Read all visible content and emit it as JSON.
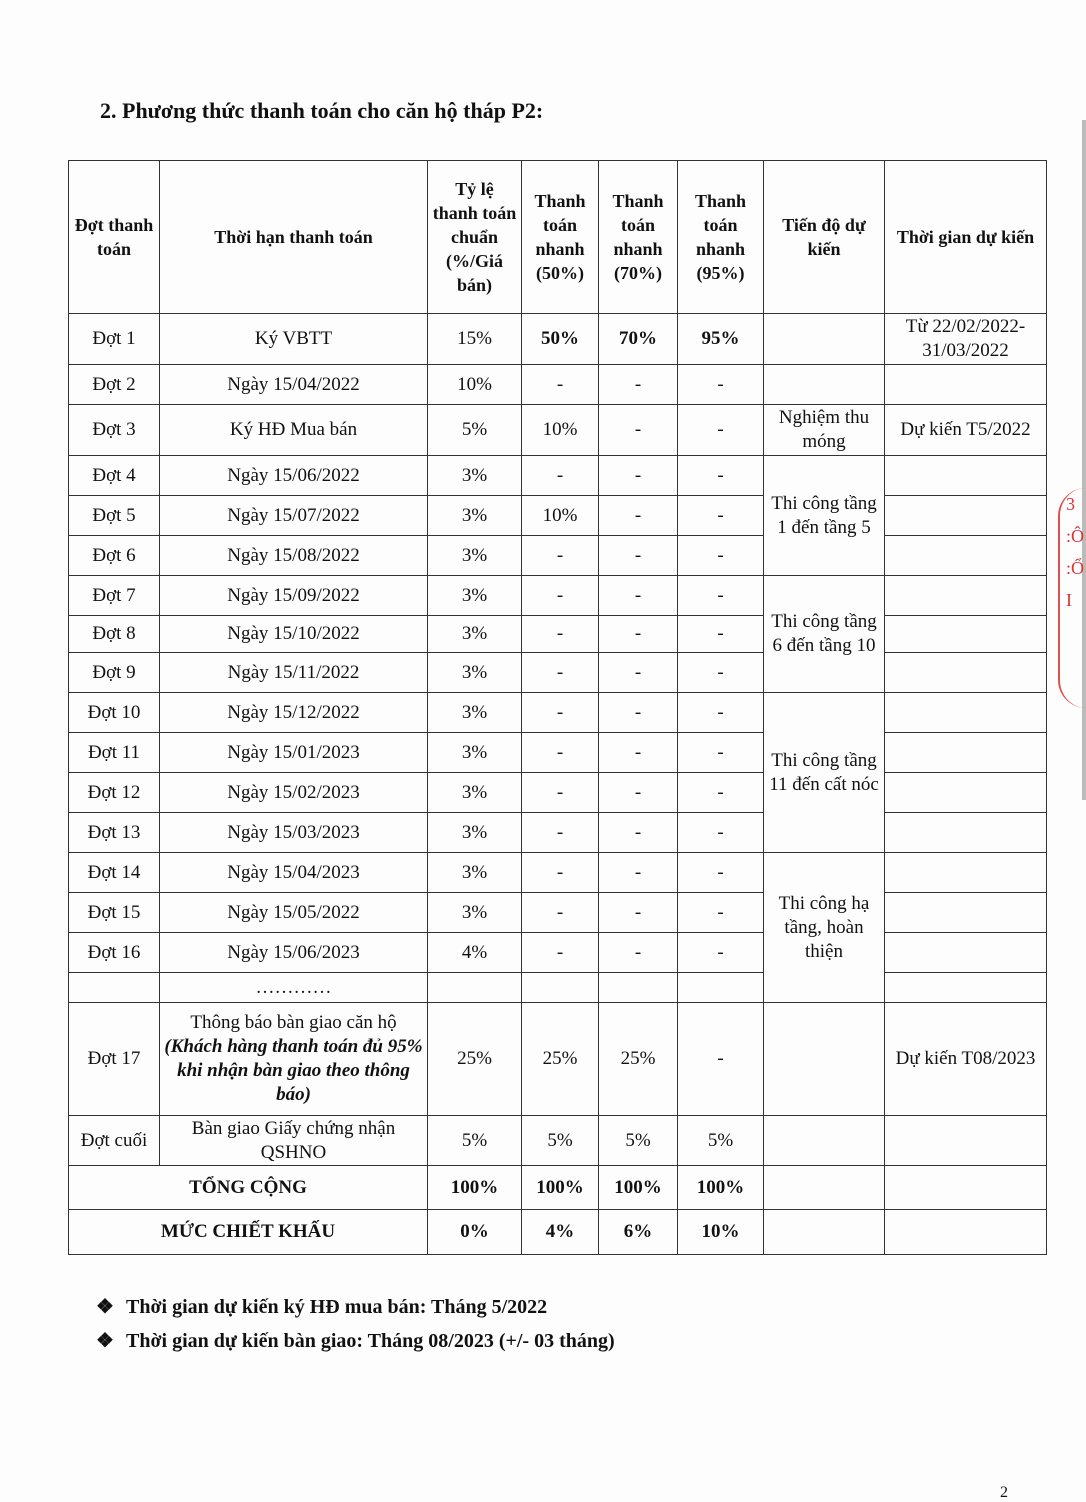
{
  "heading": "2. Phương thức thanh toán cho căn hộ tháp P2:",
  "table": {
    "headers": [
      "Đợt thanh toán",
      "Thời hạn thanh toán",
      "Tỷ lệ thanh toán chuẩn (%/Giá bán)",
      "Thanh toán nhanh (50%)",
      "Thanh toán nhanh (70%)",
      "Thanh toán nhanh (95%)",
      "Tiến độ dự kiến",
      "Thời gian dự kiến"
    ],
    "rows": [
      {
        "dot": "Đợt 1",
        "han": "Ký VBTT",
        "chuan": "15%",
        "n50": "50%",
        "n70": "70%",
        "n95": "95%",
        "tgian": "Từ 22/02/2022-31/03/2022"
      },
      {
        "dot": "Đợt 2",
        "han": "Ngày 15/04/2022",
        "chuan": "10%",
        "n50": "-",
        "n70": "-",
        "n95": "-"
      },
      {
        "dot": "Đợt 3",
        "han": "Ký HĐ Mua bán",
        "chuan": "5%",
        "n50": "10%",
        "n70": "-",
        "n95": "-",
        "tgian": "Dự kiến T5/2022"
      },
      {
        "dot": "Đợt 4",
        "han": "Ngày 15/06/2022",
        "chuan": "3%",
        "n50": "-",
        "n70": "-",
        "n95": "-"
      },
      {
        "dot": "Đợt 5",
        "han": "Ngày 15/07/2022",
        "chuan": "3%",
        "n50": "10%",
        "n70": "-",
        "n95": "-"
      },
      {
        "dot": "Đợt 6",
        "han": "Ngày 15/08/2022",
        "chuan": "3%",
        "n50": "-",
        "n70": "-",
        "n95": "-"
      },
      {
        "dot": "Đợt 7",
        "han": "Ngày 15/09/2022",
        "chuan": "3%",
        "n50": "-",
        "n70": "-",
        "n95": "-"
      },
      {
        "dot": "Đợt 8",
        "han": "Ngày 15/10/2022",
        "chuan": "3%",
        "n50": "-",
        "n70": "-",
        "n95": "-"
      },
      {
        "dot": "Đợt 9",
        "han": "Ngày 15/11/2022",
        "chuan": "3%",
        "n50": "-",
        "n70": "-",
        "n95": "-"
      },
      {
        "dot": "Đợt 10",
        "han": "Ngày 15/12/2022",
        "chuan": "3%",
        "n50": "-",
        "n70": "-",
        "n95": "-"
      },
      {
        "dot": "Đợt 11",
        "han": "Ngày 15/01/2023",
        "chuan": "3%",
        "n50": "-",
        "n70": "-",
        "n95": "-"
      },
      {
        "dot": "Đợt 12",
        "han": "Ngày 15/02/2023",
        "chuan": "3%",
        "n50": "-",
        "n70": "-",
        "n95": "-"
      },
      {
        "dot": "Đợt 13",
        "han": "Ngày 15/03/2023",
        "chuan": "3%",
        "n50": "-",
        "n70": "-",
        "n95": "-"
      },
      {
        "dot": "Đợt 14",
        "han": "Ngày 15/04/2023",
        "chuan": "3%",
        "n50": "-",
        "n70": "-",
        "n95": "-"
      },
      {
        "dot": "Đợt 15",
        "han": "Ngày 15/05/2022",
        "chuan": "3%",
        "n50": "-",
        "n70": "-",
        "n95": "-"
      },
      {
        "dot": "Đợt 16",
        "han": "Ngày 15/06/2023",
        "chuan": "4%",
        "n50": "-",
        "n70": "-",
        "n95": "-"
      },
      {
        "dot": "",
        "han": "…………",
        "chuan": "",
        "n50": "",
        "n70": "",
        "n95": ""
      },
      {
        "dot": "Đợt 17",
        "han": "Thông báo bàn giao căn hộ",
        "han_note": "(Khách hàng thanh toán đủ 95% khi nhận bàn giao theo thông báo)",
        "chuan": "25%",
        "n50": "25%",
        "n70": "25%",
        "n95": "-",
        "tgian": "Dự kiến T08/2023"
      },
      {
        "dot": "Đợt cuối",
        "han": "Bàn giao Giấy chứng nhận QSHNO",
        "chuan": "5%",
        "n50": "5%",
        "n70": "5%",
        "n95": "5%"
      }
    ],
    "progress": [
      {
        "label": "Nghiệm thu móng"
      },
      {
        "label": "Thi công tầng 1 đến tầng 5"
      },
      {
        "label": "Thi công tầng 6 đến tầng 10"
      },
      {
        "label": "Thi công tầng 11 đến cất nóc"
      },
      {
        "label": "Thi công hạ tầng, hoàn thiện"
      }
    ],
    "total": {
      "label": "TỔNG CỘNG",
      "values": [
        "100%",
        "100%",
        "100%",
        "100%"
      ]
    },
    "discount": {
      "label": "MỨC CHIẾT KHẤU",
      "values": [
        "0%",
        "4%",
        "6%",
        "10%"
      ]
    }
  },
  "notes": [
    "Thời gian dự kiến ký HĐ mua bán: Tháng 5/2022",
    "Thời gian dự kiến bàn giao: Tháng 08/2023 (+/- 03 tháng)"
  ],
  "bullet_icon": "❖",
  "page_number": "2"
}
